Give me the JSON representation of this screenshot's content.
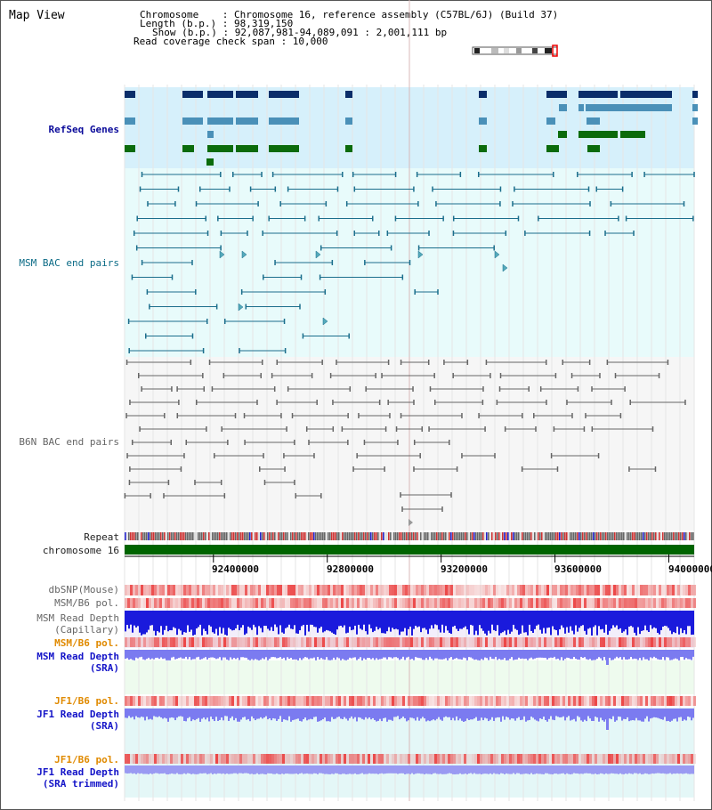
{
  "title": "Map View",
  "info": {
    "chromosome": "Chromosome    : Chromosome 16, reference assembly (C57BL/6J) (Build 37)",
    "length": "Length (b.p.) : 98,319,150",
    "show": "Show (b.p.) : 92,087,981-94,089,091 : 2,001,111 bp",
    "span": "Read coverage check span : 10,000"
  },
  "tracks": {
    "refseq": "RefSeq Genes",
    "msm_bac": "MSM BAC end pairs",
    "b6n_bac": "B6N BAC end pairs",
    "repeat": "Repeat",
    "chromosome": "chromosome 16",
    "dbsnp": "dbSNP(Mouse)",
    "msm_b6_pol_1": "MSM/B6 pol.",
    "msm_read_depth_cap_1": "MSM Read Depth",
    "msm_read_depth_cap_2": "(Capillary)",
    "msm_b6_pol_2": "MSM/B6 pol.",
    "msm_read_depth_sra_1": "MSM Read Depth",
    "msm_read_depth_sra_2": "(SRA)",
    "jf1_b6_pol_1": "JF1/B6 pol.",
    "jf1_read_depth_sra_1": "JF1 Read Depth",
    "jf1_read_depth_sra_2": "(SRA)",
    "jf1_b6_pol_2": "JF1/B6 pol.",
    "jf1_read_depth_trim_1": "JF1 Read Depth",
    "jf1_read_depth_trim_2": "(SRA trimmed)"
  },
  "axis_ticks": [
    "92400000",
    "92800000",
    "93200000",
    "93600000",
    "94000000"
  ],
  "colors": {
    "refseq_bg": "#d6f0fb",
    "msm_bg": "#e8fbfb",
    "b6n_bg": "#f4f4f4",
    "chrom": "#006400",
    "refseq_dark": "#0b2e6a",
    "refseq_mid": "#4a90b8",
    "refseq_green": "#0b6b0b",
    "msm_line": "#1b6e8c",
    "b6n_line": "#666666",
    "depth_blue": "#1a1adc",
    "depth_light": "#7b7bf0",
    "pol_red": "#f06060"
  }
}
